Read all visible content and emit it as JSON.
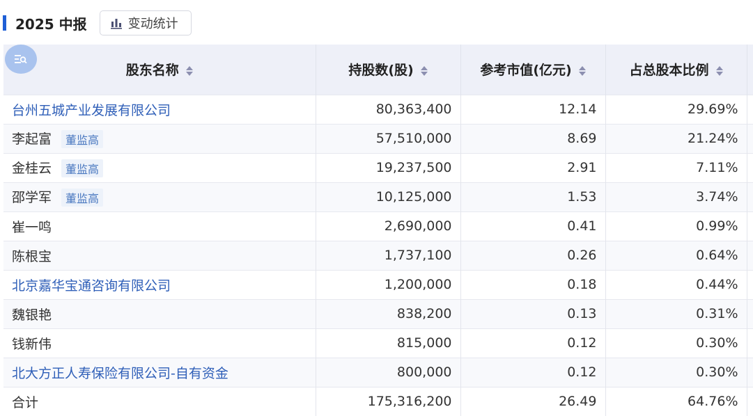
{
  "header": {
    "title": "2025 中报",
    "stats_button": "变动统计"
  },
  "columns": [
    "股东名称",
    "持股数(股)",
    "参考市值(亿元)",
    "占总股本比例"
  ],
  "rows": [
    {
      "name": "台州五城产业发展有限公司",
      "link": true,
      "tag": "",
      "shares": "80,363,400",
      "value": "12.14",
      "ratio": "29.69%"
    },
    {
      "name": "李起富",
      "link": false,
      "tag": "董监高",
      "shares": "57,510,000",
      "value": "8.69",
      "ratio": "21.24%"
    },
    {
      "name": "金桂云",
      "link": false,
      "tag": "董监高",
      "shares": "19,237,500",
      "value": "2.91",
      "ratio": "7.11%"
    },
    {
      "name": "邵学军",
      "link": false,
      "tag": "董监高",
      "shares": "10,125,000",
      "value": "1.53",
      "ratio": "3.74%"
    },
    {
      "name": "崔一鸣",
      "link": false,
      "tag": "",
      "shares": "2,690,000",
      "value": "0.41",
      "ratio": "0.99%"
    },
    {
      "name": "陈根宝",
      "link": false,
      "tag": "",
      "shares": "1,737,100",
      "value": "0.26",
      "ratio": "0.64%"
    },
    {
      "name": "北京嘉华宝通咨询有限公司",
      "link": true,
      "tag": "",
      "shares": "1,200,000",
      "value": "0.18",
      "ratio": "0.44%"
    },
    {
      "name": "魏银艳",
      "link": false,
      "tag": "",
      "shares": "838,200",
      "value": "0.13",
      "ratio": "0.31%"
    },
    {
      "name": "钱新伟",
      "link": false,
      "tag": "",
      "shares": "815,000",
      "value": "0.12",
      "ratio": "0.30%"
    },
    {
      "name": "北大方正人寿保险有限公司-自有资金",
      "link": true,
      "tag": "",
      "shares": "800,000",
      "value": "0.12",
      "ratio": "0.30%"
    }
  ],
  "total": {
    "label": "合计",
    "shares": "175,316,200",
    "value": "26.49",
    "ratio": "64.76%"
  },
  "colors": {
    "accent": "#1f5fd6",
    "link": "#2f5fb8"
  }
}
